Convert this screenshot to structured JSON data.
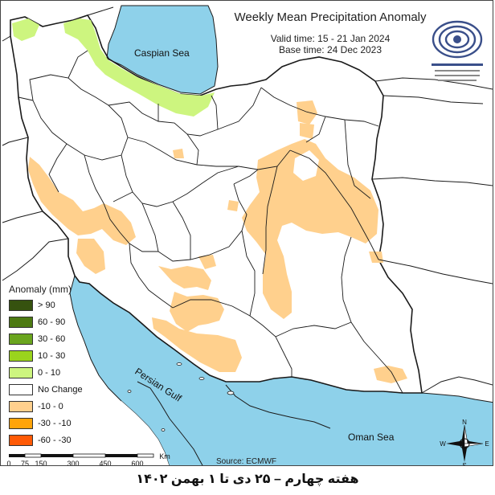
{
  "title": "Weekly Mean Precipitation Anomaly",
  "valid_time": "Valid time: 15 - 21 Jan 2024",
  "base_time": "Base time: 24 Dec 2023",
  "places": {
    "caspian": "Caspian Sea",
    "gulf": "Persian Gulf",
    "oman": "Oman Sea"
  },
  "legend": {
    "title": "Anomaly (mm)",
    "items": [
      {
        "label": "> 90",
        "color": "#36520f"
      },
      {
        "label": "60 - 90",
        "color": "#4d7a12"
      },
      {
        "label": "30 - 60",
        "color": "#6aa51e"
      },
      {
        "label": "10 - 30",
        "color": "#9ad41d"
      },
      {
        "label": "0 - 10",
        "color": "#cdf57f"
      },
      {
        "label": "No Change",
        "color": "#ffffff"
      },
      {
        "label": "-10 - 0",
        "color": "#ffd08d"
      },
      {
        "label": "-30 - -10",
        "color": "#ffa40a"
      },
      {
        "label": "-60 - -30",
        "color": "#ff5a06"
      }
    ]
  },
  "scale": {
    "ticks": [
      "0",
      "75",
      "150",
      "300",
      "450",
      "600"
    ],
    "unit": "Km"
  },
  "compass": {
    "n": "N",
    "e": "E",
    "s": "S",
    "w": "W"
  },
  "source": "Source: ECMWF",
  "caption": "هفته چهارم – ۲۵ دی تا ۱ بهمن ۱۴۰۲",
  "colors": {
    "water": "#8ed1ea",
    "land": "#ffffff",
    "border": "#1a1a1a"
  }
}
